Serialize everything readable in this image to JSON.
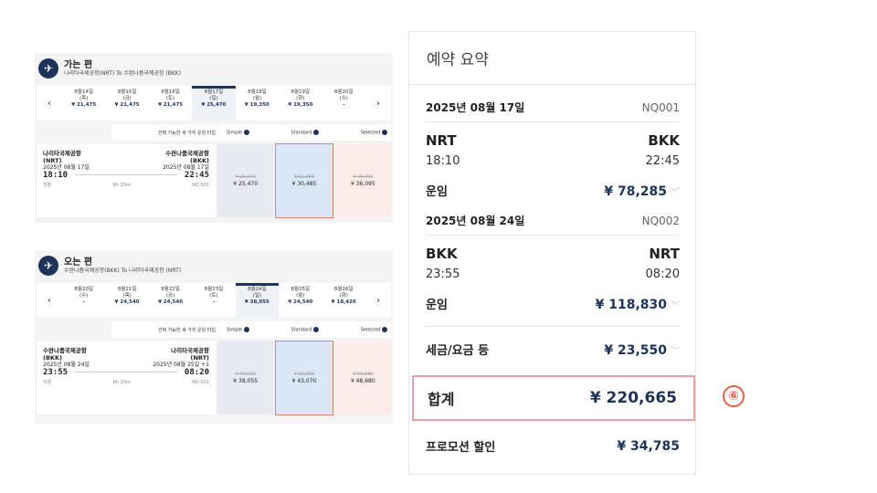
{
  "outbound": {
    "title": "가는 편",
    "route": "나리타국제공항(NRT) To 수완나품국제공항 (BKK)",
    "dates": [
      {
        "d": "8월14일",
        "w": "(목)",
        "p": "¥ 21,475",
        "sel": false
      },
      {
        "d": "8월15일",
        "w": "(금)",
        "p": "¥ 21,475",
        "sel": false
      },
      {
        "d": "8월16일",
        "w": "(토)",
        "p": "¥ 21,475",
        "sel": false
      },
      {
        "d": "8월17일",
        "w": "(일)",
        "p": "¥ 25,470",
        "sel": true
      },
      {
        "d": "8월18일",
        "w": "(월)",
        "p": "¥ 19,350",
        "sel": false
      },
      {
        "d": "8월19일",
        "w": "(화)",
        "p": "¥ 19,350",
        "sel": false
      },
      {
        "d": "8월20일",
        "w": "(수)",
        "p": "-",
        "sel": false
      }
    ],
    "fare_types_label": "선택 가능한 세 가지 운임 타입",
    "fare_types": [
      "Simple",
      "Standard",
      "Selected"
    ],
    "from_name": "나리타국제공항",
    "from_code": "(NRT)",
    "to_name": "수완나품국제공항",
    "to_code": "(BKK)",
    "dep_date": "2025년 08월 17일",
    "arr_date": "2025년 08월 17일",
    "dep_time": "18:10",
    "arr_time": "22:45",
    "type": "직항",
    "duration": "6h 35m",
    "flight_no": "NQ 001",
    "fares": [
      {
        "old": "¥ 25,190",
        "price": "¥ 25,470"
      },
      {
        "old": "¥ 31,850",
        "price": "¥ 30,485"
      },
      {
        "old": "¥ 40,450",
        "price": "¥ 36,095"
      }
    ]
  },
  "inbound": {
    "title": "오는 편",
    "route": "수완나품국제공항(BKK) To 나리타국제공항 (NRT)",
    "dates": [
      {
        "d": "8월20일",
        "w": "(수)",
        "p": "-",
        "sel": false
      },
      {
        "d": "8월21일",
        "w": "(목)",
        "p": "¥ 24,540",
        "sel": false
      },
      {
        "d": "8월22일",
        "w": "(금)",
        "p": "¥ 24,540",
        "sel": false
      },
      {
        "d": "8월23일",
        "w": "(토)",
        "p": "-",
        "sel": false
      },
      {
        "d": "8월24일",
        "w": "(일)",
        "p": "¥ 38,055",
        "sel": true
      },
      {
        "d": "8월25일",
        "w": "(월)",
        "p": "¥ 24,540",
        "sel": false
      },
      {
        "d": "8월26일",
        "w": "(화)",
        "p": "¥ 18,420",
        "sel": false
      }
    ],
    "fare_types_label": "선택 가능한 세 가지 운임 타입",
    "fare_types": [
      "Simple",
      "Standard",
      "Selected"
    ],
    "from_name": "수완나품국제공항",
    "from_code": "(BKK)",
    "to_name": "나리타국제공항",
    "to_code": "(NRT)",
    "dep_date": "2025년 08월 24일",
    "arr_date": "2025년 08월 25일 +1",
    "dep_time": "23:55",
    "arr_time": "08:20",
    "type": "직항",
    "duration": "6h 25m",
    "flight_no": "NQ 002",
    "fares": [
      {
        "old": "¥ 44,160",
        "price": "¥ 38,055"
      },
      {
        "old": "¥ 55,865",
        "price": "¥ 43,070"
      },
      {
        "old": "¥ 56,680",
        "price": "¥ 48,680"
      }
    ]
  },
  "summary": {
    "title": "예약 요약",
    "out_date": "2025년 08월 17일",
    "out_flight": "NQ001",
    "out_from": "NRT",
    "out_to": "BKK",
    "out_dep": "18:10",
    "out_arr": "22:45",
    "out_fare_label": "운임",
    "out_fare": "¥ 78,285",
    "in_date": "2025년 08월 24일",
    "in_flight": "NQ002",
    "in_from": "BKK",
    "in_to": "NRT",
    "in_dep": "23:55",
    "in_arr": "08:20",
    "in_fare_label": "운임",
    "in_fare": "¥ 118,830",
    "tax_label": "세금/요금 등",
    "tax": "¥ 23,550",
    "total_label": "합계",
    "total": "¥ 220,665",
    "promo_label": "프로모션 할인",
    "promo": "¥ 34,785"
  },
  "annotation": "⑥"
}
